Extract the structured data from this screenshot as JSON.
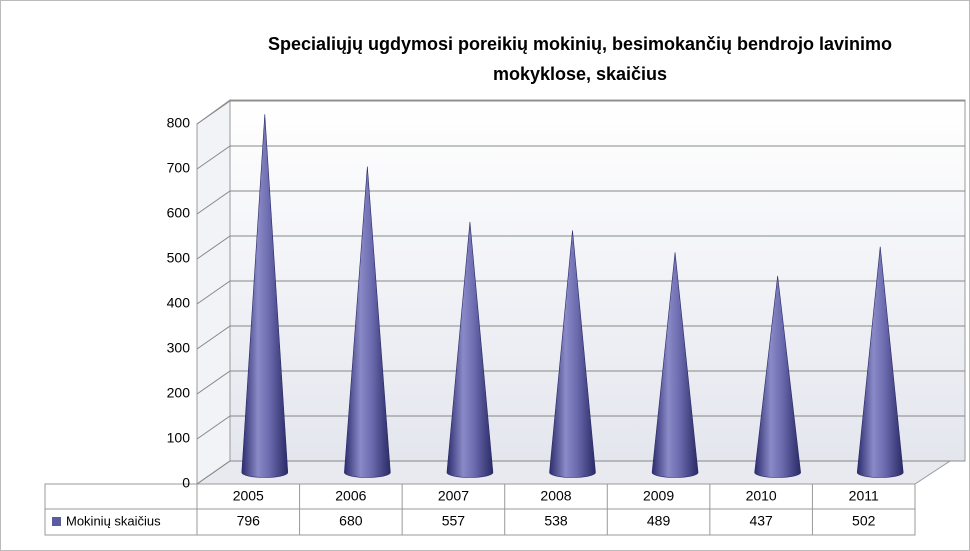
{
  "chart_data": {
    "type": "bar",
    "title": [
      "Specialiųjų ugdymosi poreikių mokinių, besimokančių  bendrojo lavinimo",
      "mokyklose, skaičius"
    ],
    "categories": [
      "2005",
      "2006",
      "2007",
      "2008",
      "2009",
      "2010",
      "2011"
    ],
    "series": [
      {
        "name": "Mokinių skaičius",
        "color": "#5b5b9f",
        "values": [
          796,
          680,
          557,
          538,
          489,
          437,
          502
        ]
      }
    ],
    "ylim": [
      0,
      800
    ],
    "yticks": [
      0,
      100,
      200,
      300,
      400,
      500,
      600,
      700,
      800
    ],
    "grid": true
  }
}
